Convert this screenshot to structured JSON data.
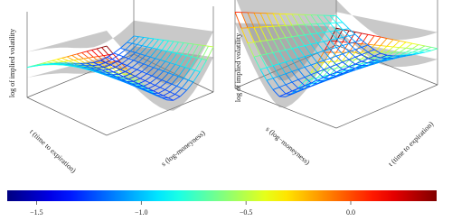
{
  "panels": [
    {
      "z_label": "log of implied volatility",
      "t_label": "t (time to expiration)",
      "s_label": "s (log-moneyness)"
    },
    {
      "z_label": "log of implied volatility",
      "s_label": "s (log−moneyness)",
      "t_label": "t (time to expiration)"
    }
  ],
  "chart_data": {
    "type": "colorbar",
    "colormap": "jet",
    "clim": [
      -1.64,
      0.41
    ],
    "ticks": [
      {
        "value": -1.5,
        "label": "−1.5"
      },
      {
        "value": -1.0,
        "label": "−1.0"
      },
      {
        "value": -0.5,
        "label": "−0.5"
      },
      {
        "value": 0.0,
        "label": "0.0"
      }
    ]
  }
}
